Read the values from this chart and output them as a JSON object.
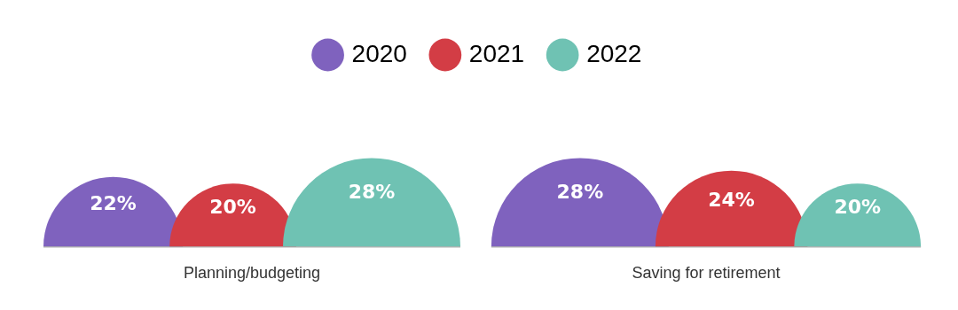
{
  "chart_data": {
    "type": "other",
    "categories": [
      "Planning/budgeting",
      "Saving for retirement"
    ],
    "series": [
      {
        "name": "2020",
        "color": "#7f62be",
        "values": [
          22,
          28
        ],
        "value_labels": [
          "22%",
          "28%"
        ]
      },
      {
        "name": "2021",
        "color": "#d33d45",
        "values": [
          20,
          24
        ],
        "value_labels": [
          "20%",
          "24%"
        ]
      },
      {
        "name": "2022",
        "color": "#6fc2b3",
        "values": [
          28,
          20
        ],
        "value_labels": [
          "28%",
          "20%"
        ]
      }
    ],
    "legend": "top"
  }
}
